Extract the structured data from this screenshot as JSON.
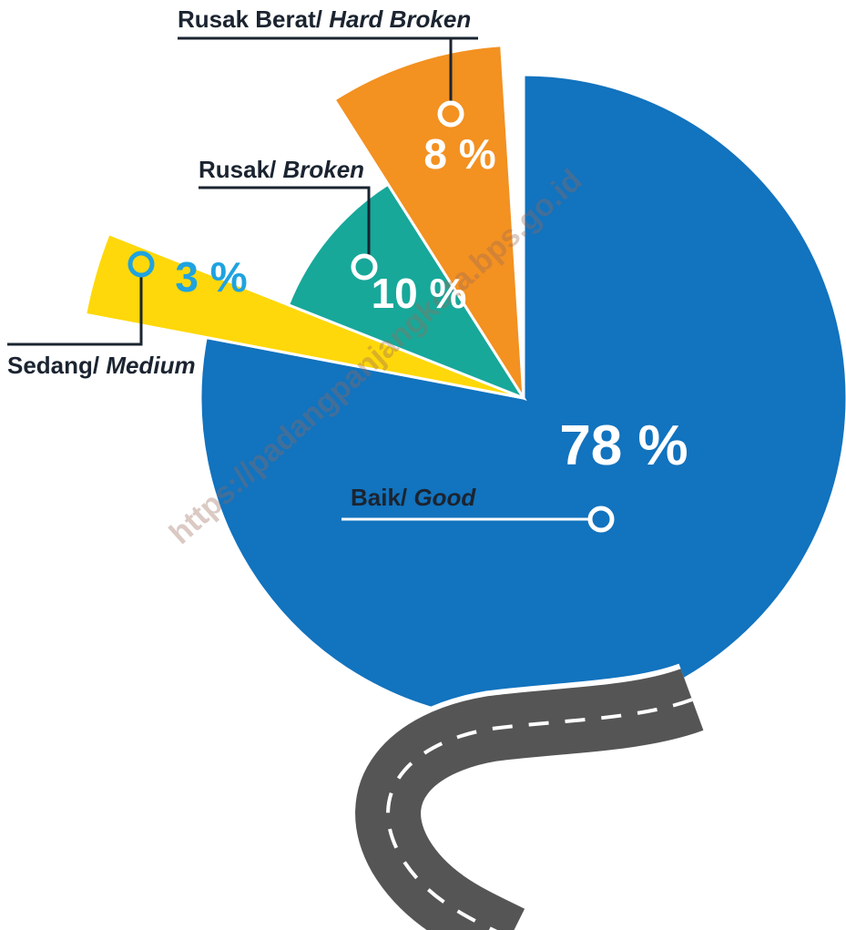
{
  "chart_data": {
    "type": "pie",
    "categories": [
      "Baik/ Good",
      "Sedang/ Medium",
      "Rusak/ Broken",
      "Rusak Berat/ Hard Broken"
    ],
    "values": [
      78,
      3,
      10,
      8
    ],
    "value_labels": [
      "78 %",
      "3 %",
      "10 %",
      "8 %"
    ],
    "colors": [
      "#1273be",
      "#fed80a",
      "#17a89a",
      "#f39121"
    ],
    "watermark": "https://padangpanjangkota.bps.go.id"
  }
}
